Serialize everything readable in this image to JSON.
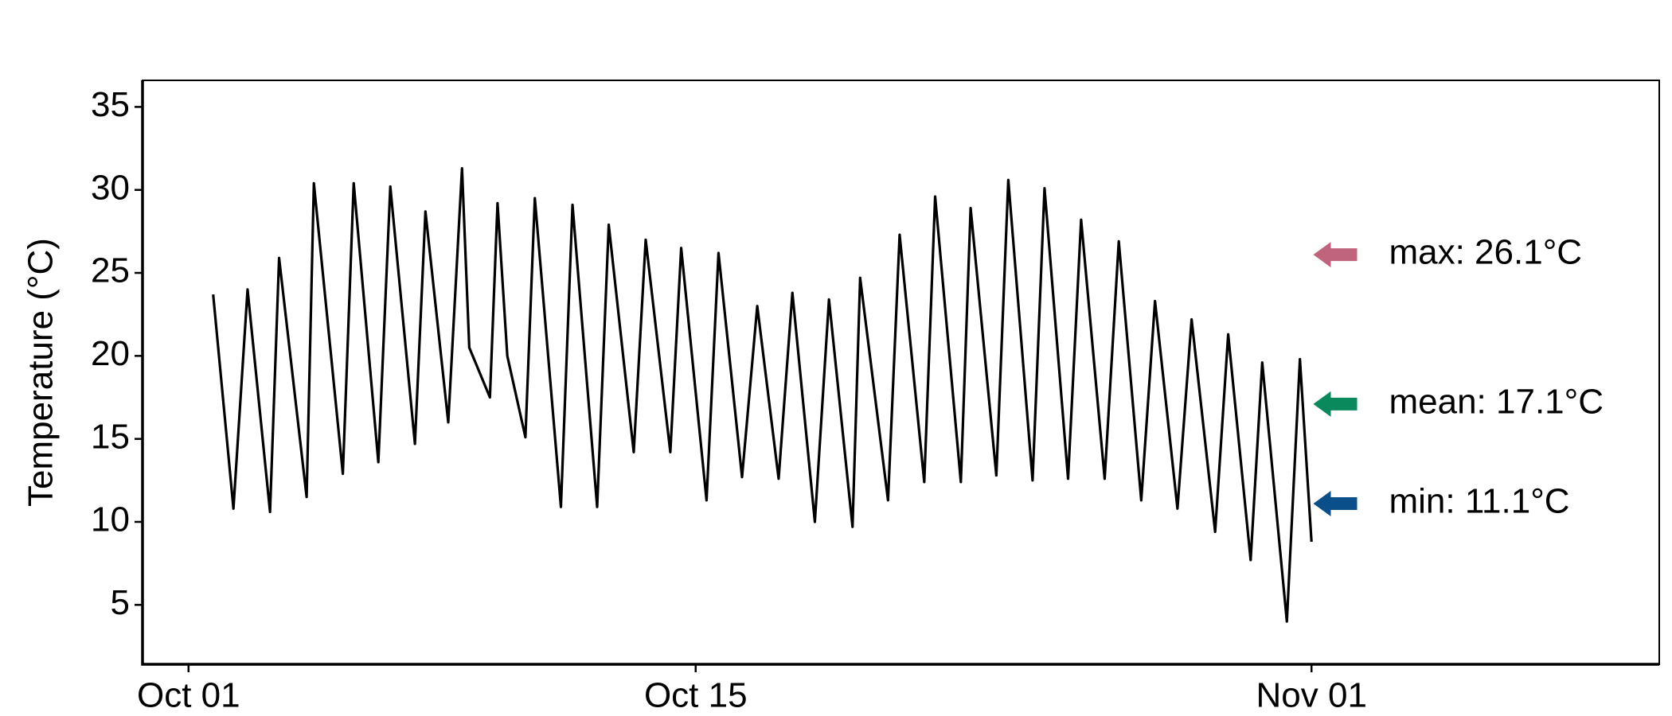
{
  "chart_data": {
    "type": "line",
    "y_label": "Temperature (°C)",
    "x": [
      0.68,
      1.24,
      1.63,
      2.25,
      2.5,
      3.26,
      3.46,
      4.26,
      4.56,
      5.24,
      5.57,
      6.25,
      6.54,
      7.17,
      7.55,
      7.75,
      8.32,
      8.53,
      8.8,
      9.3,
      9.56,
      10.28,
      10.6,
      11.28,
      11.6,
      12.29,
      12.62,
      13.3,
      13.6,
      14.3,
      14.63,
      15.28,
      15.7,
      16.29,
      16.67,
      17.29,
      17.68,
      18.33,
      18.54,
      19.31,
      19.63,
      20.31,
      20.61,
      21.32,
      21.59,
      22.3,
      22.63,
      23.3,
      23.63,
      24.28,
      24.64,
      25.29,
      25.68,
      26.3,
      26.68,
      27.3,
      27.69,
      28.34,
      28.7,
      29.32,
      29.64,
      30.32,
      30.68,
      31.0
    ],
    "values": [
      23.7,
      10.8,
      24,
      10.6,
      25.9,
      11.5,
      30.4,
      12.9,
      30.4,
      13.6,
      30.2,
      14.7,
      28.7,
      16,
      31.3,
      20.5,
      17.5,
      29.2,
      20,
      15.1,
      29.5,
      10.9,
      29.1,
      10.9,
      27.9,
      14.2,
      27,
      14.2,
      26.5,
      11.3,
      26.2,
      12.7,
      23,
      12.6,
      23.8,
      10,
      23.4,
      9.7,
      24.7,
      11.3,
      27.3,
      12.4,
      29.6,
      12.4,
      28.9,
      12.8,
      30.6,
      12.5,
      30.1,
      12.6,
      28.2,
      12.6,
      26.9,
      11.3,
      23.3,
      10.8,
      22.2,
      9.4,
      21.3,
      7.7,
      19.6,
      4,
      19.8,
      8.8
    ],
    "color": "#000000",
    "xlim": [
      -1.27,
      40.6
    ],
    "xticks": [
      {
        "value": 0,
        "label": "Oct 01"
      },
      {
        "value": 14,
        "label": "Oct 15"
      },
      {
        "value": 31,
        "label": "Nov 01"
      }
    ],
    "ylim": [
      1.42,
      36.6
    ],
    "yticks": [
      5,
      10,
      15,
      20,
      25,
      30,
      35
    ],
    "grid": false,
    "annotations": [
      {
        "label": "max: 26.1°C",
        "value": 26.1,
        "color": "#c0637d"
      },
      {
        "label": "mean: 17.1°C",
        "value": 17.1,
        "color": "#0a8a5c"
      },
      {
        "label": "min: 11.1°C",
        "value": 11.1,
        "color": "#0a4f8a"
      }
    ]
  }
}
